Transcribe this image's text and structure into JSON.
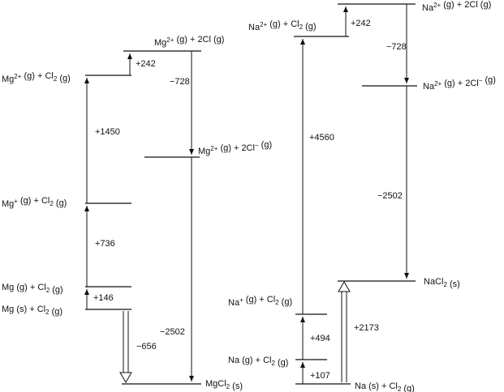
{
  "mg_cycle": {
    "levels": {
      "mg2_cl_atoms": "Mg2+ (g) + 2Cl (g)",
      "mg2_cl2": "Mg2+ (g) + Cl2 (g)",
      "mg2_chloride_ions": "Mg2+ (g) + 2Cl− (g)",
      "mg_plus_cl2": "Mg+ (g) + Cl2 (g)",
      "mg_gas_cl2": "Mg (g) + Cl2 (g)",
      "mg_solid_cl2": "Mg (s) + Cl2 (g)",
      "mgcl2_solid": "MgCl2 (s)"
    },
    "steps": {
      "atomization_cl": "+242",
      "electron_affinity": "−728",
      "second_ionization": "+1450",
      "first_ionization": "+736",
      "sublimation": "+146",
      "lattice": "−2502",
      "formation": "−656"
    }
  },
  "na_cycle": {
    "levels": {
      "na2_cl_atoms": "Na2+ (g) + 2Cl (g)",
      "na2_cl2": "Na2+ (g) + Cl2 (g)",
      "na2_chloride_ions": "Na2+ (g) + 2Cl− (g)",
      "nacl2_solid": "NaCl2 (s)",
      "na_plus_cl2": "Na+ (g) + Cl2 (g)",
      "na_gas_cl2": "Na (g) + Cl2 (g)",
      "na_solid_cl2": "Na (s) + Cl2 (g)"
    },
    "steps": {
      "atomization_cl": "+242",
      "electron_affinity": "−728",
      "ionization_total": "+4560",
      "lattice": "−2502",
      "formation": "+2173",
      "first_ionization": "+494",
      "sublimation": "+107"
    }
  }
}
